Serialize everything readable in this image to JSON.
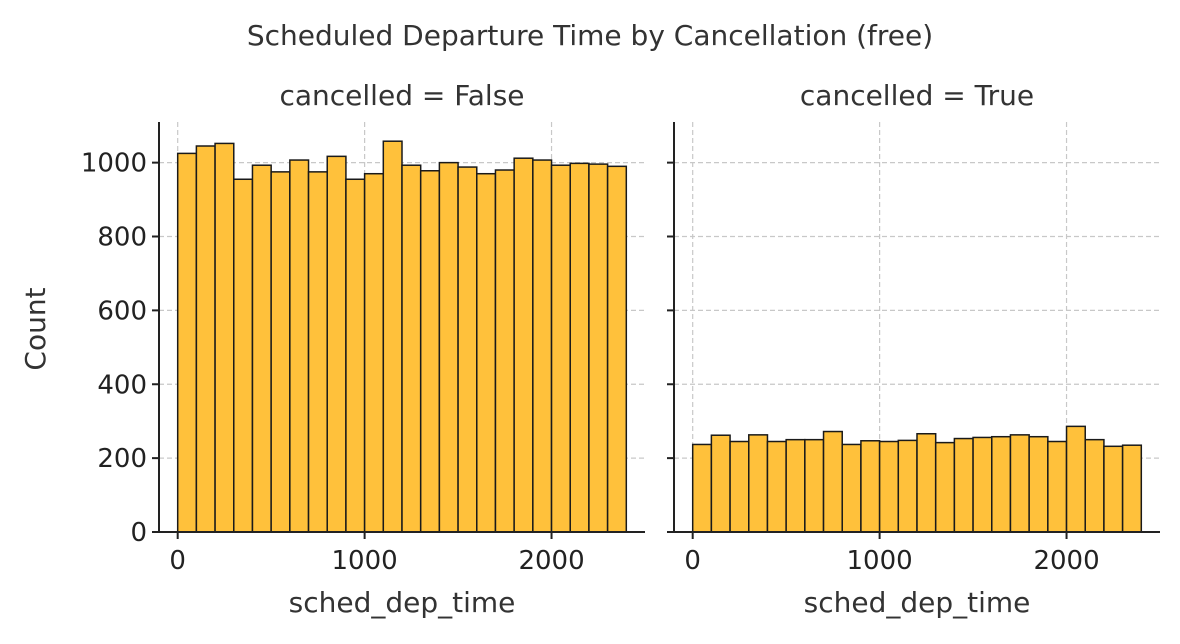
{
  "chart_data": {
    "type": "bar",
    "title": "Scheduled Departure Time by Cancellation (free)",
    "xlabel": "sched_dep_time",
    "ylabel": "Count",
    "xlim": [
      -100,
      2500
    ],
    "ylim": [
      0,
      1110
    ],
    "xticks": [
      0,
      1000,
      2000
    ],
    "yticks": [
      0,
      200,
      400,
      600,
      800,
      1000
    ],
    "grid": true,
    "bar_color": "#FFC13B",
    "bin_edges": [
      0,
      100,
      200,
      300,
      400,
      500,
      600,
      700,
      800,
      900,
      1000,
      1100,
      1200,
      1300,
      1400,
      1500,
      1600,
      1700,
      1800,
      1900,
      2000,
      2100,
      2200,
      2300,
      2400
    ],
    "panels": [
      {
        "title": "cancelled = False",
        "values": [
          1025,
          1045,
          1052,
          955,
          993,
          975,
          1007,
          975,
          1017,
          955,
          970,
          1058,
          993,
          978,
          1000,
          988,
          970,
          980,
          1012,
          1007,
          993,
          998,
          996,
          990
        ]
      },
      {
        "title": "cancelled = True",
        "values": [
          237,
          262,
          245,
          263,
          245,
          250,
          250,
          272,
          237,
          247,
          245,
          248,
          266,
          242,
          253,
          256,
          258,
          263,
          258,
          245,
          286,
          250,
          232,
          235
        ]
      }
    ]
  }
}
